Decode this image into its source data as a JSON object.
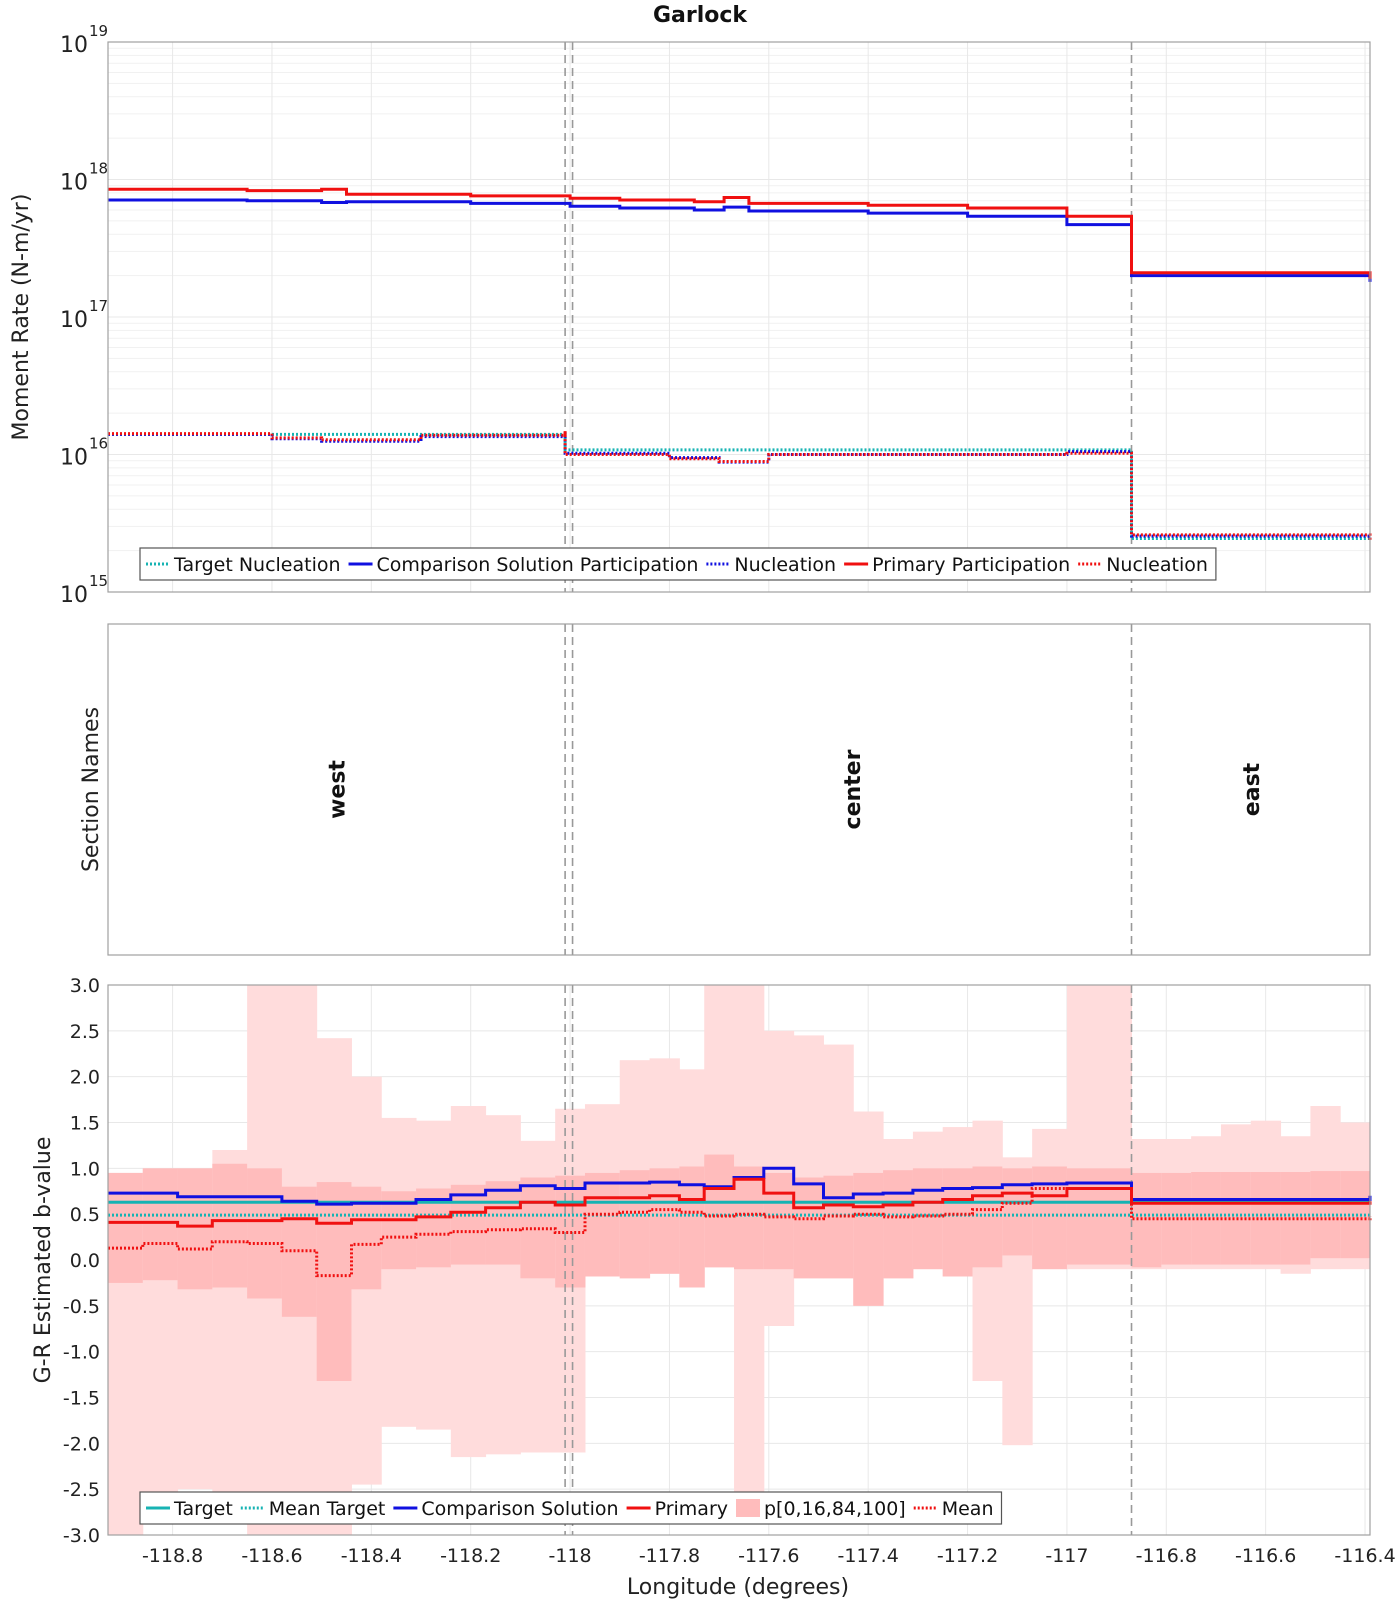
{
  "title": "Garlock",
  "xlabel": "Longitude (degrees)",
  "x_ticks": [
    -118.8,
    -118.6,
    -118.4,
    -118.2,
    -118,
    -117.8,
    -117.6,
    -117.4,
    -117.2,
    -117,
    -116.8,
    -116.6,
    -116.4
  ],
  "x_tick_labels": [
    "-118.8",
    "-118.6",
    "-118.4",
    "-118.2",
    "-118",
    "-117.8",
    "-117.6",
    "-117.4",
    "-117.2",
    "-117",
    "-116.8",
    "-116.6",
    "-116.4"
  ],
  "xlim": [
    -118.93,
    -116.39
  ],
  "section_boundaries": [
    -118.01,
    -117.995,
    -116.87
  ],
  "colors": {
    "target": "#17b3b3",
    "comparison": "#1010e0",
    "primary": "#f01010",
    "band_outer": "#ffdcdc",
    "band_inner": "#ffbcbc",
    "grid": "#e8e8e8",
    "boundary": "#999999"
  },
  "chart_data": [
    {
      "type": "line",
      "step": true,
      "ylabel": "Moment Rate (N-m/yr)",
      "yscale": "log",
      "ylim": [
        1000000000000000.0,
        1e+19
      ],
      "y_ticks": [
        {
          "base": "10",
          "exp": "15"
        },
        {
          "base": "10",
          "exp": "16"
        },
        {
          "base": "10",
          "exp": "17"
        },
        {
          "base": "10",
          "exp": "18"
        },
        {
          "base": "10",
          "exp": "19"
        }
      ],
      "grid": true,
      "legend": {
        "position": "bottom-left",
        "entries": [
          {
            "label": "Target Nucleation",
            "color": "#17b3b3",
            "style": "dotted"
          },
          {
            "label": "Comparison Solution Participation",
            "color": "#1010e0",
            "style": "solid"
          },
          {
            "label": "Nucleation",
            "color": "#1010e0",
            "style": "dotted"
          },
          {
            "label": "Primary Participation",
            "color": "#f01010",
            "style": "solid"
          },
          {
            "label": "Nucleation",
            "color": "#f01010",
            "style": "dotted"
          }
        ]
      },
      "x_edges": [
        -118.93,
        -118.85,
        -118.7,
        -118.6,
        -118.5,
        -118.45,
        -118.3,
        -118.15,
        -118.01,
        -117.995,
        -117.9,
        -117.75,
        -117.69,
        -117.64,
        -117.5,
        -117.4,
        -117.2,
        -117.0,
        -116.87,
        -116.87,
        -116.6,
        -116.39
      ],
      "series": [
        {
          "name": "Target Nucleation",
          "color": "#17b3b3",
          "style": "dotted",
          "x": [
            -118.93,
            -118.01,
            -118.01,
            -116.87,
            -116.87,
            -116.39
          ],
          "y": [
            1.4e+16,
            1.4e+16,
            1.08e+16,
            1.05e+16,
            2450000000000000.0,
            2400000000000000.0
          ]
        },
        {
          "name": "Comparison Solution Participation",
          "color": "#1010e0",
          "style": "solid",
          "x": [
            -118.93,
            -118.65,
            -118.5,
            -118.45,
            -118.2,
            -118.0,
            -117.9,
            -117.75,
            -117.69,
            -117.64,
            -117.4,
            -117.2,
            -117.0,
            -116.87,
            -116.87,
            -116.39
          ],
          "y": [
            7.1e+17,
            7e+17,
            6.8e+17,
            6.9e+17,
            6.7e+17,
            6.4e+17,
            6.2e+17,
            6e+17,
            6.3e+17,
            5.9e+17,
            5.7e+17,
            5.4e+17,
            4.7e+17,
            4.6e+17,
            2e+17,
            1.8e+17
          ]
        },
        {
          "name": "Nucleation",
          "color": "#1010e0",
          "style": "dotted",
          "x": [
            -118.93,
            -118.6,
            -118.5,
            -118.3,
            -118.01,
            -118.01,
            -117.8,
            -117.7,
            -117.6,
            -117.0,
            -116.87,
            -116.87,
            -116.39
          ],
          "y": [
            1.4e+16,
            1.3e+16,
            1.25e+16,
            1.35e+16,
            1.45e+16,
            1.02e+16,
            9500000000000000.0,
            8800000000000000.0,
            1e+16,
            1.05e+16,
            1e+16,
            2550000000000000.0,
            2400000000000000.0
          ]
        },
        {
          "name": "Primary Participation",
          "color": "#f01010",
          "style": "solid",
          "x": [
            -118.93,
            -118.65,
            -118.5,
            -118.45,
            -118.2,
            -118.0,
            -117.9,
            -117.75,
            -117.69,
            -117.64,
            -117.4,
            -117.2,
            -117.0,
            -116.87,
            -116.87,
            -116.39
          ],
          "y": [
            8.5e+17,
            8.3e+17,
            8.5e+17,
            7.8e+17,
            7.6e+17,
            7.3e+17,
            7.1e+17,
            6.9e+17,
            7.4e+17,
            6.7e+17,
            6.5e+17,
            6.2e+17,
            5.4e+17,
            5.3e+17,
            2.1e+17,
            1.9e+17
          ]
        },
        {
          "name": "Nucleation",
          "color": "#f01010",
          "style": "dotted",
          "x": [
            -118.93,
            -118.6,
            -118.5,
            -118.3,
            -118.01,
            -118.01,
            -117.8,
            -117.7,
            -117.6,
            -117.0,
            -116.87,
            -116.87,
            -116.39
          ],
          "y": [
            1.42e+16,
            1.32e+16,
            1.28e+16,
            1.38e+16,
            1.48e+16,
            1e+16,
            9300000000000000.0,
            8900000000000000.0,
            1e+16,
            1.02e+16,
            1e+16,
            2600000000000000.0,
            2400000000000000.0
          ]
        }
      ]
    },
    {
      "type": "table",
      "ylabel": "Section Names",
      "sections": [
        {
          "name": "west",
          "x0": -118.93,
          "x1": -118.01
        },
        {
          "name": "center",
          "x0": -117.995,
          "x1": -116.87
        },
        {
          "name": "east",
          "x0": -116.87,
          "x1": -116.39
        }
      ]
    },
    {
      "type": "line",
      "step": true,
      "ylabel": "G-R Estimated b-value",
      "ylim": [
        -3.0,
        3.0
      ],
      "y_ticks": [
        -3.0,
        -2.5,
        -2.0,
        -1.5,
        -1.0,
        -0.5,
        0.0,
        0.5,
        1.0,
        1.5,
        2.0,
        2.5,
        3.0
      ],
      "y_tick_labels": [
        "-3.0",
        "-2.5",
        "-2.0",
        "-1.5",
        "-1.0",
        "-0.5",
        "0.0",
        "0.5",
        "1.0",
        "1.5",
        "2.0",
        "2.5",
        "3.0"
      ],
      "grid": true,
      "legend": {
        "position": "bottom-left",
        "entries": [
          {
            "label": "Target",
            "color": "#17b3b3",
            "style": "solid"
          },
          {
            "label": "Mean Target",
            "color": "#17b3b3",
            "style": "dotted"
          },
          {
            "label": "Comparison Solution",
            "color": "#1010e0",
            "style": "solid"
          },
          {
            "label": "Primary",
            "color": "#f01010",
            "style": "solid"
          },
          {
            "label": "p[0,16,84,100]",
            "color": "#ffbcbc",
            "style": "band"
          },
          {
            "label": "Mean",
            "color": "#f01010",
            "style": "dotted"
          }
        ]
      },
      "x_edges": [
        -118.93,
        -118.86,
        -118.79,
        -118.72,
        -118.65,
        -118.58,
        -118.51,
        -118.44,
        -118.38,
        -118.31,
        -118.24,
        -118.17,
        -118.1,
        -118.03,
        -117.97,
        -117.9,
        -117.84,
        -117.78,
        -117.73,
        -117.67,
        -117.61,
        -117.55,
        -117.49,
        -117.43,
        -117.37,
        -117.31,
        -117.25,
        -117.19,
        -117.13,
        -117.07,
        -117.0,
        -116.87,
        -116.81,
        -116.75,
        -116.69,
        -116.63,
        -116.57,
        -116.51,
        -116.45,
        -116.39
      ],
      "band_p0": [
        -3.0,
        -2.6,
        -2.5,
        -2.7,
        -3.0,
        -3.0,
        -3.0,
        -2.45,
        -1.82,
        -1.85,
        -2.15,
        -2.12,
        -2.1,
        -2.1,
        -0.18,
        -0.2,
        -0.15,
        -0.3,
        -0.08,
        -2.6,
        -0.72,
        -0.2,
        -0.2,
        -0.5,
        -0.2,
        -0.1,
        -0.18,
        -1.32,
        -2.02,
        -0.1,
        -0.1,
        -0.1,
        -0.1,
        -0.1,
        -0.1,
        -0.1,
        -0.15,
        -0.1,
        -0.1
      ],
      "band_p16": [
        -0.25,
        -0.22,
        -0.32,
        -0.3,
        -0.42,
        -0.62,
        -1.32,
        -0.32,
        -0.1,
        -0.08,
        -0.05,
        -0.05,
        -0.2,
        -0.3,
        -0.18,
        -0.2,
        -0.15,
        -0.3,
        -0.08,
        -0.1,
        -0.1,
        -0.2,
        -0.2,
        -0.5,
        -0.2,
        -0.1,
        -0.18,
        -0.08,
        0.05,
        -0.1,
        -0.05,
        -0.08,
        -0.05,
        -0.05,
        -0.05,
        -0.05,
        -0.05,
        0.02,
        0.02
      ],
      "band_p84": [
        0.95,
        1.0,
        1.0,
        1.05,
        1.0,
        0.8,
        0.85,
        0.8,
        0.75,
        0.78,
        0.82,
        0.86,
        0.9,
        0.92,
        0.95,
        0.98,
        1.0,
        1.02,
        1.15,
        1.02,
        0.95,
        0.9,
        0.92,
        0.95,
        0.98,
        1.0,
        1.0,
        1.02,
        1.0,
        1.02,
        1.0,
        0.95,
        0.95,
        0.96,
        0.96,
        0.96,
        0.96,
        0.97,
        0.97
      ],
      "band_p100": [
        0.95,
        1.0,
        1.0,
        1.2,
        3.0,
        3.0,
        2.42,
        2.0,
        1.55,
        1.52,
        1.68,
        1.58,
        1.3,
        1.65,
        1.7,
        2.18,
        2.2,
        2.08,
        3.0,
        3.0,
        2.5,
        2.45,
        2.35,
        1.62,
        1.32,
        1.4,
        1.45,
        1.52,
        1.12,
        1.43,
        3.0,
        1.32,
        1.32,
        1.35,
        1.48,
        1.52,
        1.35,
        1.68,
        1.5
      ],
      "series": [
        {
          "name": "Target",
          "color": "#17b3b3",
          "style": "solid",
          "x": [
            -118.93,
            -116.39
          ],
          "y": [
            0.63,
            0.63
          ]
        },
        {
          "name": "Mean Target",
          "color": "#17b3b3",
          "style": "dotted",
          "x": [
            -118.93,
            -116.39
          ],
          "y": [
            0.49,
            0.49
          ]
        },
        {
          "name": "Comparison Solution",
          "color": "#1010e0",
          "style": "solid",
          "x": [
            -118.93,
            -118.79,
            -118.58,
            -118.51,
            -118.44,
            -118.31,
            -118.24,
            -118.17,
            -118.1,
            -118.03,
            -117.97,
            -117.84,
            -117.78,
            -117.73,
            -117.67,
            -117.61,
            -117.55,
            -117.49,
            -117.43,
            -117.37,
            -117.31,
            -117.25,
            -117.19,
            -117.13,
            -117.07,
            -117.0,
            -116.87,
            -116.87,
            -116.39
          ],
          "y": [
            0.73,
            0.69,
            0.64,
            0.61,
            0.62,
            0.66,
            0.71,
            0.76,
            0.81,
            0.78,
            0.84,
            0.85,
            0.82,
            0.8,
            0.9,
            1.0,
            0.83,
            0.68,
            0.72,
            0.73,
            0.76,
            0.78,
            0.79,
            0.82,
            0.83,
            0.84,
            0.84,
            0.66,
            0.7
          ]
        },
        {
          "name": "Primary",
          "color": "#f01010",
          "style": "solid",
          "x": [
            -118.93,
            -118.79,
            -118.72,
            -118.58,
            -118.51,
            -118.44,
            -118.31,
            -118.24,
            -118.17,
            -118.1,
            -118.03,
            -117.97,
            -117.84,
            -117.78,
            -117.73,
            -117.67,
            -117.61,
            -117.55,
            -117.49,
            -117.43,
            -117.37,
            -117.31,
            -117.25,
            -117.19,
            -117.13,
            -117.07,
            -117.0,
            -116.87,
            -116.87,
            -116.39
          ],
          "y": [
            0.41,
            0.37,
            0.43,
            0.45,
            0.4,
            0.44,
            0.47,
            0.52,
            0.57,
            0.63,
            0.6,
            0.68,
            0.7,
            0.66,
            0.78,
            0.88,
            0.73,
            0.57,
            0.6,
            0.58,
            0.6,
            0.63,
            0.66,
            0.7,
            0.73,
            0.7,
            0.78,
            0.78,
            0.62,
            0.64
          ]
        },
        {
          "name": "Mean",
          "color": "#f01010",
          "style": "dotted",
          "x": [
            -118.93,
            -118.86,
            -118.79,
            -118.72,
            -118.65,
            -118.58,
            -118.51,
            -118.44,
            -118.38,
            -118.31,
            -118.24,
            -118.17,
            -118.1,
            -118.03,
            -117.97,
            -117.9,
            -117.84,
            -117.78,
            -117.73,
            -117.67,
            -117.61,
            -117.55,
            -117.49,
            -117.43,
            -117.37,
            -117.31,
            -117.25,
            -117.19,
            -117.13,
            -117.07,
            -117.0,
            -116.87,
            -116.87,
            -116.39
          ],
          "y": [
            0.13,
            0.18,
            0.12,
            0.2,
            0.18,
            0.1,
            -0.17,
            0.17,
            0.25,
            0.28,
            0.31,
            0.33,
            0.34,
            0.3,
            0.5,
            0.52,
            0.55,
            0.52,
            0.48,
            0.5,
            0.47,
            0.45,
            0.48,
            0.5,
            0.47,
            0.48,
            0.5,
            0.55,
            0.62,
            0.78,
            0.78,
            0.78,
            0.45,
            0.48
          ]
        }
      ]
    }
  ]
}
